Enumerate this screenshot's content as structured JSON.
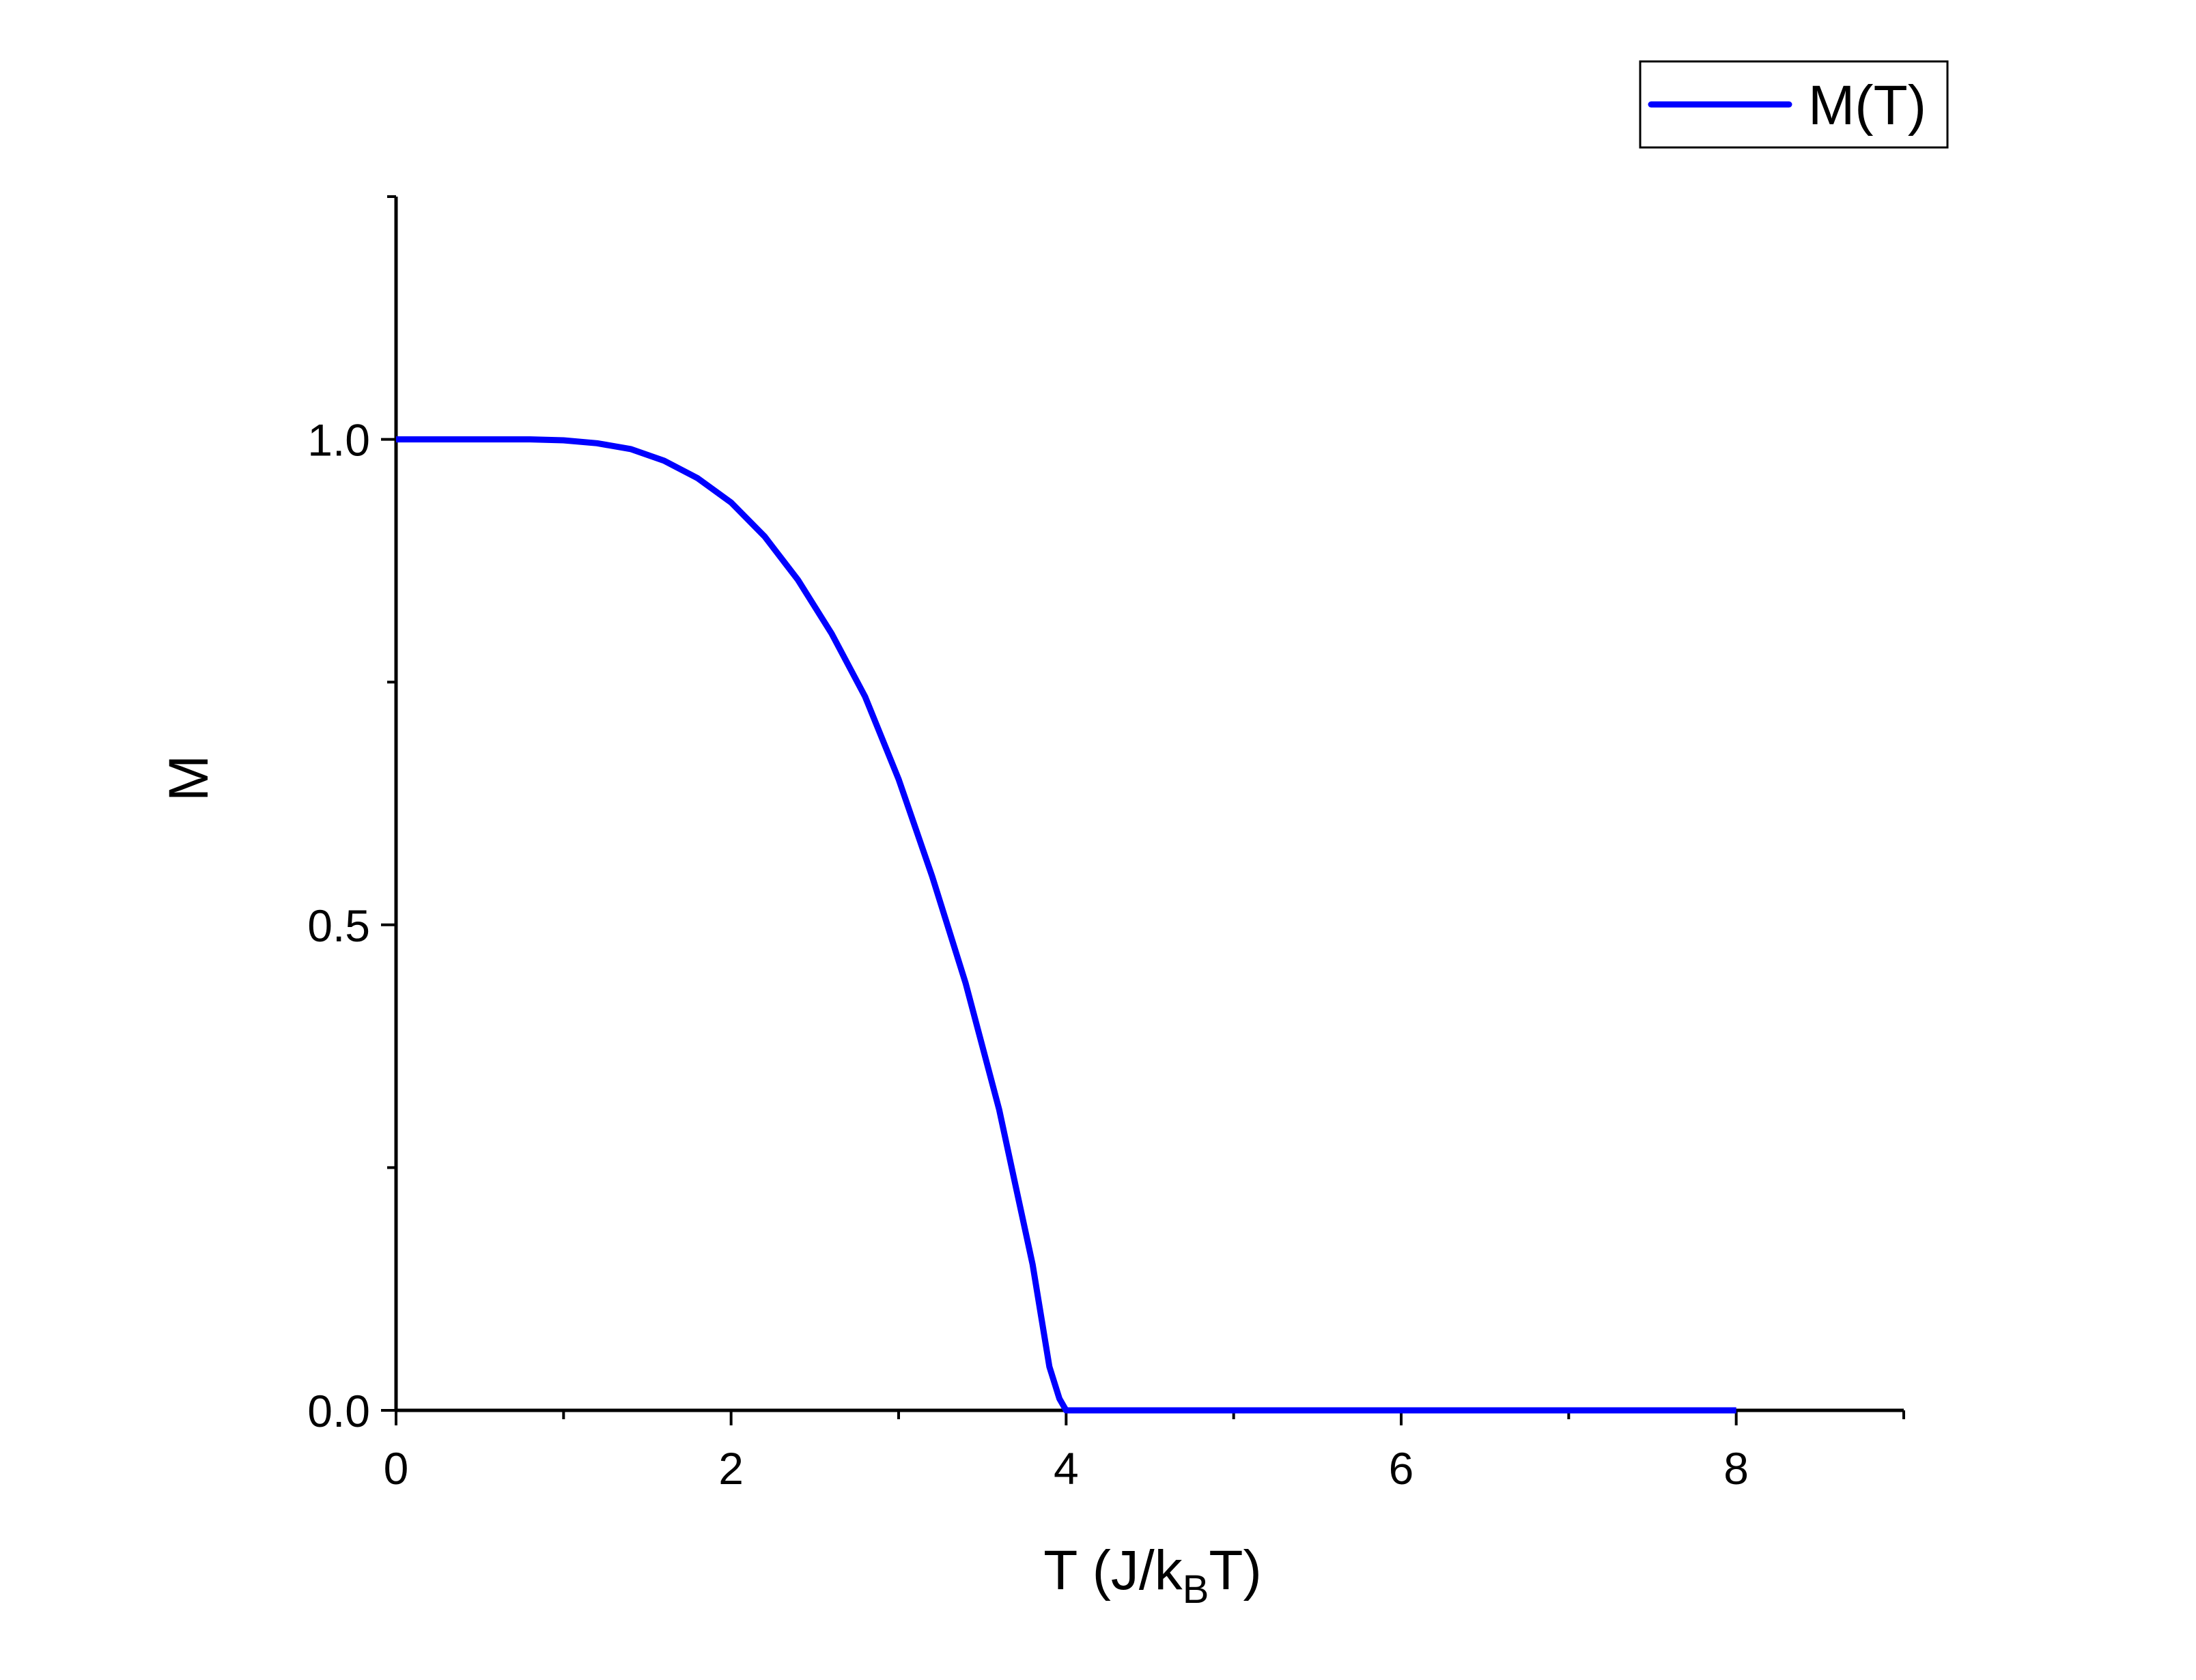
{
  "chart_data": {
    "type": "line",
    "title": "",
    "xlabel": {
      "prefix": "T (J/k",
      "subscript": "B",
      "suffix": "T)"
    },
    "ylabel": "M",
    "xlim": [
      0,
      9
    ],
    "ylim": [
      0,
      1.25
    ],
    "x_ticks": [
      0,
      2,
      4,
      6,
      8
    ],
    "x_tick_labels": [
      "0",
      "2",
      "4",
      "6",
      "8"
    ],
    "x_minor_ticks": [
      1,
      3,
      5,
      7,
      9
    ],
    "y_ticks": [
      0,
      0.5,
      1.0
    ],
    "y_tick_labels": [
      "0.0",
      "0.5",
      "1.0"
    ],
    "y_minor_ticks": [
      0.25,
      0.75,
      1.25
    ],
    "grid": false,
    "legend": {
      "position": "top-right",
      "entries": [
        "M(T)"
      ]
    },
    "series": [
      {
        "name": "M(T)",
        "color": "#0000ff",
        "x": [
          0,
          0.4,
          0.8,
          1.0,
          1.2,
          1.4,
          1.6,
          1.8,
          2.0,
          2.2,
          2.4,
          2.6,
          2.8,
          3.0,
          3.2,
          3.4,
          3.6,
          3.7,
          3.8,
          3.9,
          3.96,
          4.0,
          4.2,
          5.0,
          6.0,
          7.0,
          8.0
        ],
        "y": [
          1.0,
          1.0,
          1.0,
          0.999,
          0.996,
          0.99,
          0.978,
          0.96,
          0.935,
          0.9,
          0.855,
          0.8,
          0.735,
          0.65,
          0.55,
          0.44,
          0.31,
          0.23,
          0.15,
          0.045,
          0.012,
          0.0,
          0.0,
          0.0,
          0.0,
          0.0,
          0.0
        ]
      }
    ]
  }
}
